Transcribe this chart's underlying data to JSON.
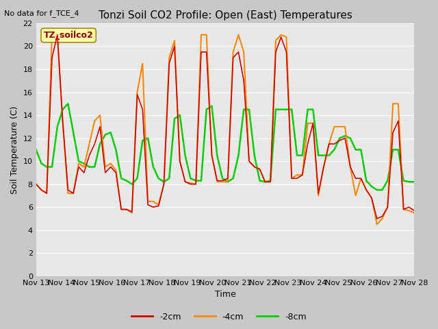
{
  "title": "Tonzi Soil CO2 Profile: Open (East) Temperatures",
  "subtitle": "No data for f_TCE_4",
  "xlabel": "Time",
  "ylabel": "Soil Temperature (C)",
  "legend_label": "TZ_soilco2",
  "ylim": [
    0,
    22
  ],
  "yticks": [
    0,
    2,
    4,
    6,
    8,
    10,
    12,
    14,
    16,
    18,
    20,
    22
  ],
  "xtick_labels": [
    "Nov 13",
    "Nov 14",
    "Nov 15",
    "Nov 16",
    "Nov 17",
    "Nov 18",
    "Nov 19",
    "Nov 20",
    "Nov 21",
    "Nov 22",
    "Nov 23",
    "Nov 24",
    "Nov 25",
    "Nov 26",
    "Nov 27",
    "Nov 28"
  ],
  "color_2cm": "#cc0000",
  "color_4cm": "#ff8800",
  "color_8cm": "#00cc00",
  "fig_facecolor": "#c8c8c8",
  "ax_facecolor": "#e8e8e8",
  "grid_color": "#ffffff",
  "series_2cm": [
    8.0,
    7.5,
    7.2,
    19.0,
    21.0,
    13.5,
    7.5,
    7.2,
    9.5,
    9.0,
    10.5,
    11.5,
    13.0,
    9.0,
    9.5,
    9.0,
    5.8,
    5.8,
    5.6,
    15.8,
    14.5,
    6.2,
    6.0,
    6.1,
    8.0,
    18.5,
    20.0,
    10.0,
    8.2,
    8.0,
    8.0,
    19.5,
    19.5,
    10.5,
    8.3,
    8.3,
    8.5,
    19.0,
    19.5,
    17.0,
    10.0,
    9.5,
    9.3,
    8.2,
    8.2,
    19.5,
    20.8,
    19.5,
    8.5,
    8.5,
    8.8,
    11.5,
    13.3,
    7.2,
    9.5,
    11.5,
    11.5,
    11.8,
    12.0,
    9.5,
    8.5,
    8.5,
    7.5,
    6.8,
    5.0,
    5.2,
    6.0,
    12.5,
    13.5,
    5.8,
    6.0,
    5.7
  ],
  "series_4cm": [
    8.0,
    7.5,
    7.2,
    21.0,
    21.0,
    13.5,
    7.2,
    7.2,
    9.8,
    9.5,
    11.5,
    13.5,
    14.0,
    9.5,
    9.8,
    9.2,
    5.8,
    5.8,
    5.5,
    16.0,
    18.5,
    6.5,
    6.5,
    6.2,
    8.0,
    19.0,
    20.5,
    10.0,
    8.2,
    8.1,
    8.0,
    21.0,
    21.0,
    10.5,
    8.2,
    8.2,
    8.2,
    19.5,
    21.0,
    19.5,
    10.0,
    9.5,
    9.3,
    8.2,
    8.2,
    20.5,
    21.0,
    20.8,
    8.5,
    8.8,
    8.8,
    13.3,
    13.3,
    7.0,
    9.5,
    11.5,
    13.0,
    13.0,
    13.0,
    9.5,
    7.0,
    8.5,
    7.5,
    6.8,
    4.5,
    5.0,
    6.0,
    15.0,
    15.0,
    5.8,
    5.7,
    5.5
  ],
  "series_8cm": [
    11.0,
    9.8,
    9.5,
    9.5,
    13.0,
    14.5,
    15.0,
    12.5,
    10.0,
    9.8,
    9.5,
    9.5,
    11.5,
    12.3,
    12.5,
    11.0,
    8.5,
    8.3,
    8.0,
    8.5,
    11.8,
    12.0,
    9.5,
    8.5,
    8.2,
    8.5,
    13.7,
    14.0,
    10.5,
    8.5,
    8.3,
    8.3,
    14.5,
    14.8,
    10.5,
    8.5,
    8.2,
    8.5,
    10.5,
    14.5,
    14.5,
    10.5,
    8.3,
    8.2,
    8.3,
    14.5,
    14.5,
    14.5,
    14.5,
    10.5,
    10.5,
    14.5,
    14.5,
    10.5,
    10.5,
    10.5,
    11.0,
    12.0,
    12.2,
    12.0,
    11.0,
    11.0,
    8.3,
    7.8,
    7.5,
    7.5,
    8.3,
    11.0,
    11.0,
    8.3,
    8.2,
    8.2
  ]
}
